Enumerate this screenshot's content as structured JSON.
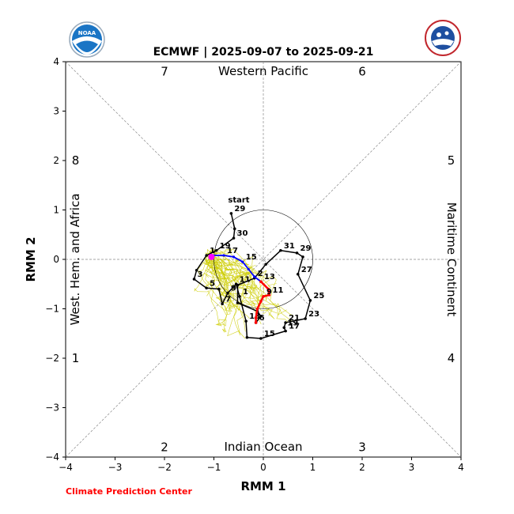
{
  "chart_data": {
    "type": "line",
    "title": "ECMWF | 2025-09-07 to 2025-09-21",
    "xlabel": "RMM 1",
    "ylabel": "RMM 2",
    "xlim": [
      -4,
      4
    ],
    "ylim": [
      -4,
      4
    ],
    "xticks": [
      "−4",
      "−3",
      "−2",
      "−1",
      "0",
      "1",
      "2",
      "3",
      "4"
    ],
    "yticks": [
      "−4",
      "−3",
      "−2",
      "−1",
      "0",
      "1",
      "2",
      "3",
      "4"
    ],
    "regions": {
      "top": "Western Pacific",
      "bottom": "Indian Ocean",
      "left": "West. Hem. and Africa",
      "right": "Maritime Continent"
    },
    "phases": [
      "1",
      "2",
      "3",
      "4",
      "5",
      "6",
      "7",
      "8"
    ],
    "unit_circle_radius": 1,
    "observed": {
      "color": "#000000",
      "start_label": "start",
      "points": [
        {
          "x": -0.65,
          "y": 0.93,
          "label": "29"
        },
        {
          "x": -0.58,
          "y": 0.62,
          "label": ""
        },
        {
          "x": -0.6,
          "y": 0.43,
          "label": "30"
        },
        {
          "x": -0.95,
          "y": 0.18,
          "label": "19"
        },
        {
          "x": -1.15,
          "y": 0.08,
          "label": "1"
        },
        {
          "x": -1.35,
          "y": -0.22,
          "label": ""
        },
        {
          "x": -1.4,
          "y": -0.4,
          "label": "3"
        },
        {
          "x": -1.15,
          "y": -0.58,
          "label": "5"
        },
        {
          "x": -0.9,
          "y": -0.6,
          "label": ""
        },
        {
          "x": -0.83,
          "y": -0.9,
          "label": "7"
        },
        {
          "x": -0.72,
          "y": -0.68,
          "label": "9"
        },
        {
          "x": -0.55,
          "y": -0.5,
          "label": "11"
        },
        {
          "x": -0.48,
          "y": -0.75,
          "label": "1"
        },
        {
          "x": -0.35,
          "y": -1.25,
          "label": "13"
        },
        {
          "x": -0.33,
          "y": -1.58,
          "label": ""
        },
        {
          "x": -0.05,
          "y": -1.6,
          "label": "15"
        },
        {
          "x": 0.45,
          "y": -1.45,
          "label": "17"
        },
        {
          "x": 0.42,
          "y": -1.38,
          "label": "19"
        },
        {
          "x": 0.45,
          "y": -1.28,
          "label": "21"
        },
        {
          "x": 0.85,
          "y": -1.2,
          "label": "23"
        },
        {
          "x": 0.95,
          "y": -0.83,
          "label": "25"
        },
        {
          "x": 0.7,
          "y": -0.3,
          "label": "27"
        },
        {
          "x": 0.8,
          "y": 0.05,
          "label": ""
        },
        {
          "x": 0.68,
          "y": 0.13,
          "label": "29"
        },
        {
          "x": 0.35,
          "y": 0.18,
          "label": "31"
        },
        {
          "x": 0.05,
          "y": -0.1,
          "label": ""
        },
        {
          "x": -0.18,
          "y": -0.38,
          "label": "2"
        },
        {
          "x": -0.52,
          "y": -0.52,
          "label": ""
        },
        {
          "x": -0.52,
          "y": -0.88,
          "label": ""
        },
        {
          "x": -0.12,
          "y": -1.05,
          "label": ""
        },
        {
          "x": -0.05,
          "y": -1.15,
          "label": ""
        },
        {
          "x": -0.15,
          "y": -1.28,
          "label": "6"
        }
      ]
    },
    "forecast_mean": {
      "color": "#0000ff",
      "points": [
        {
          "x": -1.05,
          "y": 0.08,
          "label": ""
        },
        {
          "x": -0.8,
          "y": 0.08,
          "label": "17"
        },
        {
          "x": -0.6,
          "y": 0.05,
          "label": ""
        },
        {
          "x": -0.42,
          "y": -0.05,
          "label": "15"
        },
        {
          "x": -0.3,
          "y": -0.2,
          "label": ""
        },
        {
          "x": -0.18,
          "y": -0.35,
          "label": ""
        },
        {
          "x": -0.05,
          "y": -0.45,
          "label": "13"
        }
      ]
    },
    "forecast_week2": {
      "color": "#ff0000",
      "points": [
        {
          "x": -0.05,
          "y": -0.45,
          "label": ""
        },
        {
          "x": 0.1,
          "y": -0.6,
          "label": ""
        },
        {
          "x": 0.12,
          "y": -0.72,
          "label": "11"
        },
        {
          "x": 0.0,
          "y": -0.75,
          "label": "9"
        },
        {
          "x": -0.05,
          "y": -0.85,
          "label": ""
        },
        {
          "x": -0.12,
          "y": -1.0,
          "label": ""
        },
        {
          "x": -0.15,
          "y": -1.18,
          "label": ""
        },
        {
          "x": -0.15,
          "y": -1.28,
          "label": ""
        }
      ]
    },
    "forecast_start_marker": {
      "x": -1.05,
      "y": 0.05,
      "color": "#ff00ff"
    },
    "ensemble_color": "#cccc00"
  },
  "credit": "Climate Prediction Center",
  "logos": {
    "noaa": {
      "text": "NOAA",
      "color": "#0a3f8f"
    },
    "nws": {
      "text": "NATIONAL WEATHER SERVICE",
      "color": "#c1272d"
    }
  }
}
